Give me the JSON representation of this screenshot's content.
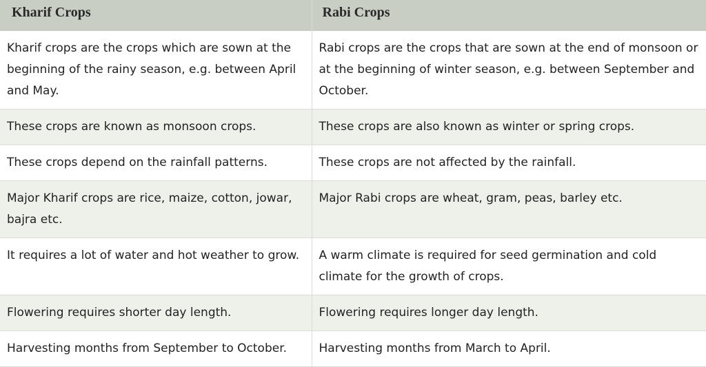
{
  "table": {
    "headers": [
      "Kharif Crops",
      "Rabi Crops"
    ],
    "rows": [
      [
        "Kharif crops are the crops which are sown at the beginning of the rainy season, e.g. between April and May.",
        "Rabi crops are the crops that are sown at the end of monsoon or at the beginning of winter season, e.g. between September and October."
      ],
      [
        "These crops are known as monsoon crops.",
        "These crops are also known as winter or spring crops."
      ],
      [
        "These crops depend on the rainfall patterns.",
        "These crops are not affected by the rainfall."
      ],
      [
        "Major Kharif crops are rice, maize, cotton, jowar, bajra etc.",
        "Major Rabi crops are wheat, gram, peas, barley etc."
      ],
      [
        "It requires a lot of water and hot weather to grow.",
        "A warm climate is required for seed germination and cold climate for the growth of crops."
      ],
      [
        "Flowering requires shorter day length.",
        "Flowering requires longer day length."
      ],
      [
        "Harvesting months from September to October.",
        "Harvesting months from March to April."
      ]
    ]
  }
}
